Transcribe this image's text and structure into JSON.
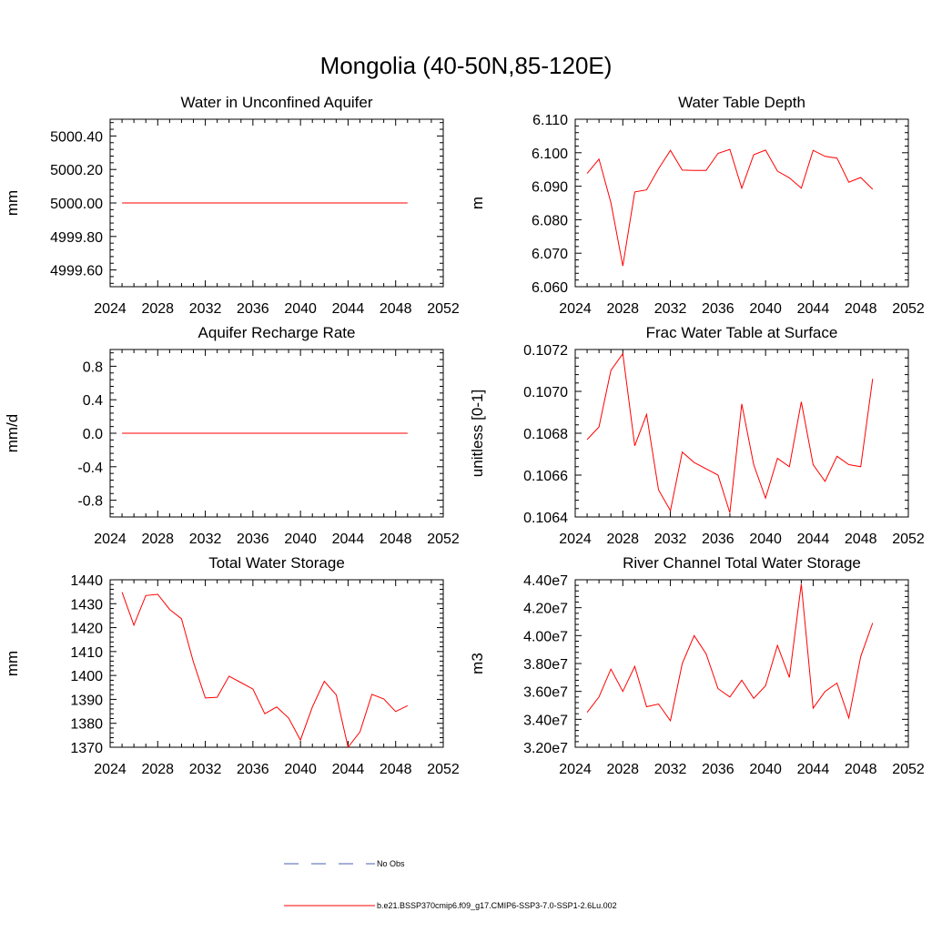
{
  "title": "Mongolia (40-50N,85-120E)",
  "legend": {
    "entries": [
      {
        "label": "No Obs",
        "color": "#4b5fb0",
        "style": "dashed"
      },
      {
        "label": "b.e21.BSSP370cmip6.f09_g17.CMIP6-SSP3-7.0-SSP1-2.6Lu.002",
        "color": "#ff0000",
        "style": "solid"
      }
    ]
  },
  "chart_data": [
    {
      "type": "line",
      "title": "Water in Unconfined Aquifer",
      "ylabel": "mm",
      "xlim": [
        2024,
        2052
      ],
      "ylim": [
        4999.5,
        5000.5
      ],
      "xticks": [
        2024,
        2028,
        2032,
        2036,
        2040,
        2044,
        2048,
        2052
      ],
      "yticks": [
        "4999.60",
        "4999.80",
        "5000.00",
        "5000.20",
        "5000.40"
      ],
      "x": [
        2025,
        2026,
        2027,
        2028,
        2029,
        2030,
        2031,
        2032,
        2033,
        2034,
        2035,
        2036,
        2037,
        2038,
        2039,
        2040,
        2041,
        2042,
        2043,
        2044,
        2045,
        2046,
        2047,
        2048,
        2049
      ],
      "series": [
        {
          "color": "#ff0000",
          "values": [
            5000,
            5000,
            5000,
            5000,
            5000,
            5000,
            5000,
            5000,
            5000,
            5000,
            5000,
            5000,
            5000,
            5000,
            5000,
            5000,
            5000,
            5000,
            5000,
            5000,
            5000,
            5000,
            5000,
            5000,
            5000
          ]
        }
      ]
    },
    {
      "type": "line",
      "title": "Water Table Depth",
      "ylabel": "m",
      "xlim": [
        2024,
        2052
      ],
      "ylim": [
        6.06,
        6.11
      ],
      "xticks": [
        2024,
        2028,
        2032,
        2036,
        2040,
        2044,
        2048,
        2052
      ],
      "yticks": [
        "6.060",
        "6.070",
        "6.080",
        "6.090",
        "6.100",
        "6.110"
      ],
      "x": [
        2025,
        2026,
        2027,
        2028,
        2029,
        2030,
        2031,
        2032,
        2033,
        2034,
        2035,
        2036,
        2037,
        2038,
        2039,
        2040,
        2041,
        2042,
        2043,
        2044,
        2045,
        2046,
        2047,
        2048,
        2049
      ],
      "series": [
        {
          "color": "#ff0000",
          "values": [
            6.0938,
            6.0981,
            6.0851,
            6.0662,
            6.0883,
            6.0889,
            6.0952,
            6.1007,
            6.0948,
            6.0947,
            6.0947,
            6.0998,
            6.101,
            6.0894,
            6.0994,
            6.1008,
            6.0945,
            6.0925,
            6.0894,
            6.1007,
            6.0989,
            6.0984,
            6.0912,
            6.0926,
            6.0891
          ]
        }
      ]
    },
    {
      "type": "line",
      "title": "Aquifer Recharge Rate",
      "ylabel": "mm/d",
      "xlim": [
        2024,
        2052
      ],
      "ylim": [
        -1.0,
        1.0
      ],
      "xticks": [
        2024,
        2028,
        2032,
        2036,
        2040,
        2044,
        2048,
        2052
      ],
      "yticks": [
        "-0.8",
        "-0.4",
        "0.0",
        "0.4",
        "0.8"
      ],
      "x": [
        2025,
        2026,
        2027,
        2028,
        2029,
        2030,
        2031,
        2032,
        2033,
        2034,
        2035,
        2036,
        2037,
        2038,
        2039,
        2040,
        2041,
        2042,
        2043,
        2044,
        2045,
        2046,
        2047,
        2048,
        2049
      ],
      "series": [
        {
          "color": "#ff0000",
          "values": [
            0,
            0,
            0,
            0,
            0,
            0,
            0,
            0,
            0,
            0,
            0,
            0,
            0,
            0,
            0,
            0,
            0,
            0,
            0,
            0,
            0,
            0,
            0,
            0,
            0
          ]
        }
      ]
    },
    {
      "type": "line",
      "title": "Frac Water Table at Surface",
      "ylabel": "unitless [0-1]",
      "xlim": [
        2024,
        2052
      ],
      "ylim": [
        0.1064,
        0.1072
      ],
      "xticks": [
        2024,
        2028,
        2032,
        2036,
        2040,
        2044,
        2048,
        2052
      ],
      "yticks": [
        "0.1064",
        "0.1066",
        "0.1068",
        "0.1070",
        "0.1072"
      ],
      "x": [
        2025,
        2026,
        2027,
        2028,
        2029,
        2030,
        2031,
        2032,
        2033,
        2034,
        2035,
        2036,
        2037,
        2038,
        2039,
        2040,
        2041,
        2042,
        2043,
        2044,
        2045,
        2046,
        2047,
        2048,
        2049
      ],
      "series": [
        {
          "color": "#ff0000",
          "values": [
            0.10677,
            0.10683,
            0.1071,
            0.10718,
            0.10674,
            0.10689,
            0.10653,
            0.10643,
            0.10671,
            0.10666,
            0.10663,
            0.1066,
            0.10642,
            0.10694,
            0.10665,
            0.10649,
            0.10668,
            0.10664,
            0.10695,
            0.10665,
            0.10657,
            0.10669,
            0.10665,
            0.10664,
            0.10706
          ]
        }
      ]
    },
    {
      "type": "line",
      "title": "Total Water Storage",
      "ylabel": "mm",
      "xlim": [
        2024,
        2052
      ],
      "ylim": [
        1370,
        1440
      ],
      "xticks": [
        2024,
        2028,
        2032,
        2036,
        2040,
        2044,
        2048,
        2052
      ],
      "yticks": [
        "1370",
        "1380",
        "1390",
        "1400",
        "1410",
        "1420",
        "1430",
        "1440"
      ],
      "x": [
        2025,
        2026,
        2027,
        2028,
        2029,
        2030,
        2031,
        2032,
        2033,
        2034,
        2035,
        2036,
        2037,
        2038,
        2039,
        2040,
        2041,
        2042,
        2043,
        2044,
        2045,
        2046,
        2047,
        2048,
        2049
      ],
      "series": [
        {
          "color": "#ff0000",
          "values": [
            1434.8,
            1421.0,
            1433.4,
            1433.9,
            1427.6,
            1423.7,
            1405.6,
            1390.6,
            1390.9,
            1399.7,
            1397.0,
            1394.3,
            1384.0,
            1386.8,
            1382.2,
            1373.0,
            1386.8,
            1397.6,
            1391.9,
            1370.0,
            1376.4,
            1392.1,
            1390.2,
            1384.9,
            1387.4
          ]
        }
      ]
    },
    {
      "type": "line",
      "title": "River Channel Total Water Storage",
      "ylabel": "m3",
      "xlim": [
        2024,
        2052
      ],
      "ylim": [
        32000000,
        44000000
      ],
      "xticks": [
        2024,
        2028,
        2032,
        2036,
        2040,
        2044,
        2048,
        2052
      ],
      "yticks": [
        "3.20e7",
        "3.40e7",
        "3.60e7",
        "3.80e7",
        "4.00e7",
        "4.20e7",
        "4.40e7"
      ],
      "x": [
        2025,
        2026,
        2027,
        2028,
        2029,
        2030,
        2031,
        2032,
        2033,
        2034,
        2035,
        2036,
        2037,
        2038,
        2039,
        2040,
        2041,
        2042,
        2043,
        2044,
        2045,
        2046,
        2047,
        2048,
        2049
      ],
      "series": [
        {
          "color": "#ff0000",
          "values": [
            34500000,
            35600000,
            37600000,
            36000000,
            37800000,
            34900000,
            35100000,
            33900000,
            38000000,
            40000000,
            38700000,
            36200000,
            35600000,
            36800000,
            35500000,
            36400000,
            39300000,
            37000000,
            43700000,
            34800000,
            36000000,
            36600000,
            34100000,
            38500000,
            40900000
          ]
        }
      ]
    }
  ]
}
